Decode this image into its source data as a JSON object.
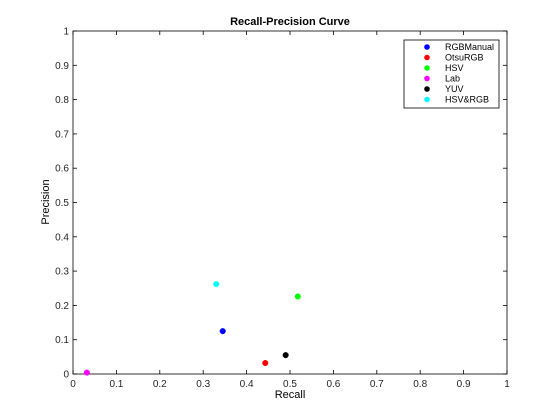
{
  "chart_data": {
    "type": "scatter",
    "title": "Recall-Precision Curve",
    "xlabel": "Recall",
    "ylabel": "Precision",
    "xlim": [
      0,
      1
    ],
    "ylim": [
      0,
      1
    ],
    "xticks": [
      "0",
      "0.1",
      "0.2",
      "0.3",
      "0.4",
      "0.5",
      "0.6",
      "0.7",
      "0.8",
      "0.9",
      "1"
    ],
    "yticks": [
      "0",
      "0.1",
      "0.2",
      "0.3",
      "0.4",
      "0.5",
      "0.6",
      "0.7",
      "0.8",
      "0.9",
      "1"
    ],
    "grid": false,
    "legend_position": "top-right",
    "series": [
      {
        "name": "RGBManual",
        "color": "#0000ff",
        "x": [
          0.345
        ],
        "y": [
          0.125
        ]
      },
      {
        "name": "OtsuRGB",
        "color": "#ff0000",
        "x": [
          0.443
        ],
        "y": [
          0.032
        ]
      },
      {
        "name": "HSV",
        "color": "#00ff00",
        "x": [
          0.518
        ],
        "y": [
          0.226
        ]
      },
      {
        "name": "Lab",
        "color": "#ff00ff",
        "x": [
          0.032
        ],
        "y": [
          0.004
        ]
      },
      {
        "name": "YUV",
        "color": "#000000",
        "x": [
          0.49
        ],
        "y": [
          0.055
        ]
      },
      {
        "name": "HSV&RGB",
        "color": "#00ffff",
        "x": [
          0.33
        ],
        "y": [
          0.262
        ]
      }
    ]
  }
}
